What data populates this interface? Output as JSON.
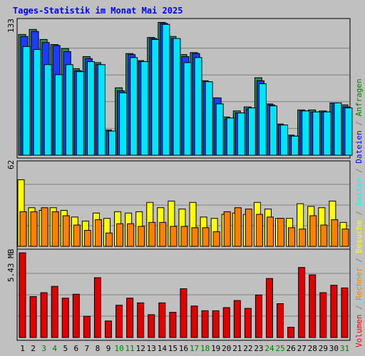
{
  "title": "Tages-Statistik im Monat Mai 2025",
  "axis_labels": {
    "top_max": "133",
    "mid_max": "62",
    "bottom_max": "5.43 MB"
  },
  "legend": [
    {
      "text": "Volumen",
      "color": "#ff0000"
    },
    {
      "text": " / ",
      "color": "#808080"
    },
    {
      "text": "Rechner",
      "color": "#ff8000"
    },
    {
      "text": " / ",
      "color": "#808080"
    },
    {
      "text": "Besuche",
      "color": "#ffff00"
    },
    {
      "text": " / ",
      "color": "#808080"
    },
    {
      "text": "Seiten",
      "color": "#00ffff"
    },
    {
      "text": " / ",
      "color": "#808080"
    },
    {
      "text": "Dateien",
      "color": "#0000ff"
    },
    {
      "text": " / ",
      "color": "#808080"
    },
    {
      "text": "Anfragen",
      "color": "#008000"
    }
  ],
  "chart_data": {
    "type": "bar",
    "title": "Tages-Statistik im Monat Mai 2025",
    "categories": [
      "1",
      "2",
      "3",
      "4",
      "5",
      "6",
      "7",
      "8",
      "9",
      "10",
      "11",
      "12",
      "13",
      "14",
      "15",
      "16",
      "17",
      "18",
      "19",
      "20",
      "21",
      "22",
      "23",
      "24",
      "25",
      "26",
      "27",
      "28",
      "29",
      "30",
      "31"
    ],
    "weekend_days": [
      "3",
      "4",
      "10",
      "11",
      "17",
      "18",
      "24",
      "25",
      "31"
    ],
    "panels": [
      {
        "id": "top",
        "max_label": "133",
        "ylim": [
          0,
          133
        ],
        "series": [
          {
            "name": "Anfragen",
            "color": "#2e8b57",
            "values": [
              120,
              125,
              115,
              110,
              106,
              86,
              98,
              92,
              25,
              67,
              101,
              94,
              117,
              132,
              118,
              100,
              102,
              74,
              57,
              38,
              44,
              48,
              77,
              51,
              31,
              20,
              45,
              45,
              44,
              52,
              50
            ]
          },
          {
            "name": "Dateien",
            "color": "#1e3cff",
            "values": [
              118,
              123,
              112,
              109,
              103,
              84,
              96,
              90,
              24,
              64,
              100,
              93,
              116,
              131,
              116,
              98,
              101,
              73,
              57,
              36,
              42,
              46,
              74,
              50,
              30,
              19,
              44,
              43,
              43,
              52,
              48
            ]
          },
          {
            "name": "Seiten",
            "color": "#00e5ff",
            "values": [
              108,
              105,
              90,
              80,
              90,
              83,
              93,
              90,
              24,
              62,
              97,
              93,
              115,
              130,
              116,
              92,
              97,
              73,
              51,
              37,
              42,
              47,
              71,
              49,
              30,
              19,
              44,
              43,
              43,
              52,
              47
            ]
          }
        ]
      },
      {
        "id": "mid",
        "max_label": "62",
        "ylim": [
          0,
          62
        ],
        "series": [
          {
            "name": "Besuche",
            "color": "#ffff00",
            "values": [
              50,
              29,
              27,
              29,
              27,
              22,
              19,
              25,
              21,
              26,
              25,
              26,
              33,
              29,
              34,
              28,
              33,
              22,
              21,
              24,
              25,
              24,
              33,
              28,
              21,
              21,
              32,
              30,
              29,
              34,
              18
            ]
          },
          {
            "name": "Rechner",
            "color": "#ff8000",
            "values": [
              26,
              26,
              29,
              26,
              23,
              16,
              12,
              20,
              10,
              17,
              17,
              15,
              18,
              18,
              15,
              15,
              14,
              14,
              11,
              26,
              29,
              28,
              24,
              22,
              21,
              14,
              13,
              23,
              16,
              20,
              13
            ]
          }
        ]
      },
      {
        "id": "bottom",
        "max_label": "5.43 MB",
        "ylim": [
          0,
          5.43
        ],
        "series": [
          {
            "name": "Volumen",
            "color": "#e00000",
            "values": [
              5.38,
              2.6,
              2.85,
              3.25,
              2.5,
              2.75,
              1.35,
              3.8,
              1.05,
              2.05,
              2.5,
              2.2,
              1.45,
              2.2,
              1.6,
              3.1,
              2.0,
              1.7,
              1.7,
              1.9,
              2.35,
              1.85,
              2.7,
              3.75,
              2.15,
              0.65,
              4.45,
              3.98,
              2.85,
              3.32,
              3.15
            ]
          }
        ]
      }
    ],
    "legend_placement": "right"
  }
}
